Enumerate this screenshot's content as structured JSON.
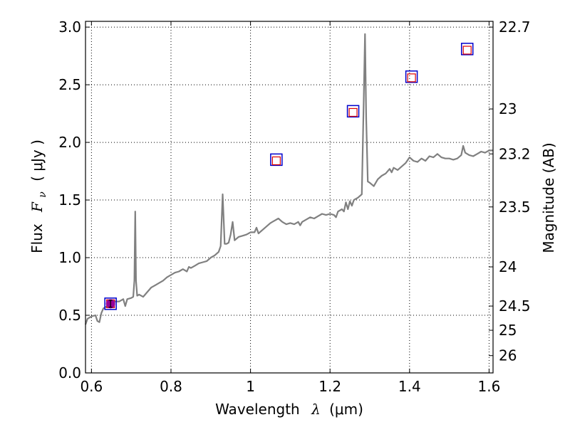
{
  "chart_data": {
    "type": "line",
    "xlabel_prefix": "Wavelength",
    "xlabel_symbol": "λ",
    "xlabel_unit": "(μm)",
    "ylabel_prefix": "Flux",
    "ylabel_symbol": "F",
    "ylabel_subscript": "ν",
    "ylabel_unit": "( μJy )",
    "y2label": "Magnitude (AB)",
    "xlim": [
      0.585,
      1.61
    ],
    "ylim": [
      0.0,
      3.05
    ],
    "grid": true,
    "grid_style": "dotted",
    "x_ticks": [
      0.6,
      0.8,
      1.0,
      1.2,
      1.4,
      1.6
    ],
    "x_tick_labels": [
      "0.6",
      "0.8",
      "1",
      "1.2",
      "1.4",
      "1.6"
    ],
    "y_ticks": [
      0.0,
      0.5,
      1.0,
      1.5,
      2.0,
      2.5,
      3.0
    ],
    "y_tick_labels": [
      "0.0",
      "0.5",
      "1.0",
      "1.5",
      "2.0",
      "2.5",
      "3.0"
    ],
    "y2_ticks": [
      {
        "label": "22.7",
        "flux": 3.0
      },
      {
        "label": "23",
        "flux": 2.29
      },
      {
        "label": "23.2",
        "flux": 1.9
      },
      {
        "label": "23.5",
        "flux": 1.44
      },
      {
        "label": "24",
        "flux": 0.92
      },
      {
        "label": "24.5",
        "flux": 0.58
      },
      {
        "label": "25",
        "flux": 0.37
      },
      {
        "label": "26",
        "flux": 0.15
      }
    ],
    "series": [
      {
        "kind": "spectrum",
        "color": "#808080",
        "points": [
          [
            0.585,
            0.42
          ],
          [
            0.59,
            0.47
          ],
          [
            0.6,
            0.49
          ],
          [
            0.61,
            0.5
          ],
          [
            0.615,
            0.45
          ],
          [
            0.62,
            0.44
          ],
          [
            0.625,
            0.52
          ],
          [
            0.63,
            0.56
          ],
          [
            0.64,
            0.58
          ],
          [
            0.65,
            0.6
          ],
          [
            0.66,
            0.62
          ],
          [
            0.67,
            0.62
          ],
          [
            0.68,
            0.64
          ],
          [
            0.685,
            0.58
          ],
          [
            0.69,
            0.64
          ],
          [
            0.7,
            0.65
          ],
          [
            0.705,
            0.66
          ],
          [
            0.708,
            0.8
          ],
          [
            0.71,
            1.4
          ],
          [
            0.712,
            0.8
          ],
          [
            0.715,
            0.67
          ],
          [
            0.72,
            0.68
          ],
          [
            0.73,
            0.66
          ],
          [
            0.74,
            0.7
          ],
          [
            0.75,
            0.74
          ],
          [
            0.76,
            0.76
          ],
          [
            0.77,
            0.78
          ],
          [
            0.78,
            0.8
          ],
          [
            0.79,
            0.83
          ],
          [
            0.8,
            0.85
          ],
          [
            0.81,
            0.87
          ],
          [
            0.82,
            0.88
          ],
          [
            0.83,
            0.9
          ],
          [
            0.84,
            0.88
          ],
          [
            0.845,
            0.92
          ],
          [
            0.85,
            0.91
          ],
          [
            0.86,
            0.93
          ],
          [
            0.87,
            0.95
          ],
          [
            0.88,
            0.96
          ],
          [
            0.89,
            0.97
          ],
          [
            0.9,
            1.0
          ],
          [
            0.91,
            1.02
          ],
          [
            0.92,
            1.05
          ],
          [
            0.925,
            1.1
          ],
          [
            0.93,
            1.55
          ],
          [
            0.935,
            1.12
          ],
          [
            0.94,
            1.12
          ],
          [
            0.945,
            1.13
          ],
          [
            0.95,
            1.2
          ],
          [
            0.955,
            1.31
          ],
          [
            0.96,
            1.15
          ],
          [
            0.97,
            1.18
          ],
          [
            0.98,
            1.19
          ],
          [
            0.99,
            1.2
          ],
          [
            1.0,
            1.22
          ],
          [
            1.01,
            1.22
          ],
          [
            1.015,
            1.26
          ],
          [
            1.02,
            1.21
          ],
          [
            1.03,
            1.24
          ],
          [
            1.04,
            1.27
          ],
          [
            1.05,
            1.3
          ],
          [
            1.06,
            1.32
          ],
          [
            1.07,
            1.34
          ],
          [
            1.08,
            1.31
          ],
          [
            1.09,
            1.29
          ],
          [
            1.1,
            1.3
          ],
          [
            1.11,
            1.29
          ],
          [
            1.12,
            1.31
          ],
          [
            1.125,
            1.28
          ],
          [
            1.13,
            1.31
          ],
          [
            1.14,
            1.33
          ],
          [
            1.15,
            1.35
          ],
          [
            1.16,
            1.34
          ],
          [
            1.17,
            1.36
          ],
          [
            1.18,
            1.38
          ],
          [
            1.19,
            1.37
          ],
          [
            1.2,
            1.38
          ],
          [
            1.21,
            1.37
          ],
          [
            1.215,
            1.35
          ],
          [
            1.22,
            1.4
          ],
          [
            1.23,
            1.42
          ],
          [
            1.235,
            1.4
          ],
          [
            1.24,
            1.48
          ],
          [
            1.245,
            1.42
          ],
          [
            1.25,
            1.49
          ],
          [
            1.255,
            1.45
          ],
          [
            1.26,
            1.5
          ],
          [
            1.27,
            1.52
          ],
          [
            1.28,
            1.55
          ],
          [
            1.285,
            2.4
          ],
          [
            1.288,
            2.94
          ],
          [
            1.291,
            2.2
          ],
          [
            1.295,
            1.66
          ],
          [
            1.3,
            1.65
          ],
          [
            1.31,
            1.62
          ],
          [
            1.32,
            1.68
          ],
          [
            1.33,
            1.71
          ],
          [
            1.34,
            1.73
          ],
          [
            1.35,
            1.77
          ],
          [
            1.355,
            1.74
          ],
          [
            1.36,
            1.78
          ],
          [
            1.37,
            1.76
          ],
          [
            1.38,
            1.79
          ],
          [
            1.39,
            1.82
          ],
          [
            1.4,
            1.87
          ],
          [
            1.41,
            1.84
          ],
          [
            1.42,
            1.83
          ],
          [
            1.43,
            1.86
          ],
          [
            1.44,
            1.84
          ],
          [
            1.45,
            1.88
          ],
          [
            1.46,
            1.87
          ],
          [
            1.47,
            1.9
          ],
          [
            1.48,
            1.87
          ],
          [
            1.49,
            1.86
          ],
          [
            1.5,
            1.86
          ],
          [
            1.51,
            1.85
          ],
          [
            1.52,
            1.86
          ],
          [
            1.53,
            1.89
          ],
          [
            1.535,
            1.97
          ],
          [
            1.54,
            1.91
          ],
          [
            1.55,
            1.89
          ],
          [
            1.56,
            1.88
          ],
          [
            1.57,
            1.9
          ],
          [
            1.58,
            1.92
          ],
          [
            1.59,
            1.91
          ],
          [
            1.6,
            1.93
          ],
          [
            1.61,
            1.93
          ]
        ]
      }
    ],
    "photometry": [
      {
        "x": 0.648,
        "model": 0.6,
        "observed": 0.6,
        "err": 0.03
      },
      {
        "x": 1.065,
        "model": 1.85,
        "observed": 1.84
      },
      {
        "x": 1.258,
        "model": 2.27,
        "observed": 2.26
      },
      {
        "x": 1.405,
        "model": 2.57,
        "observed": 2.56
      },
      {
        "x": 1.545,
        "model": 2.81,
        "observed": 2.8
      }
    ],
    "colors": {
      "spectrum": "#808080",
      "model_marker": "#0000cc",
      "observed_marker": "#dd0000",
      "detection_fill": "#990099",
      "axes": "#000000",
      "grid": "#000000"
    }
  }
}
